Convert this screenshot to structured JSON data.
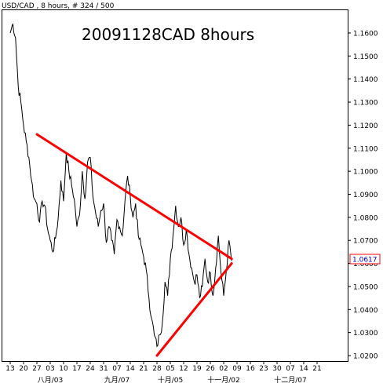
{
  "header": {
    "symbol_info": "USD/CAD , 8 hours, # 324 / 500"
  },
  "chart_data": {
    "type": "line",
    "title": "20091128CAD 8hours",
    "ylim": [
      1.0195,
      1.166
    ],
    "y_ticks": [
      "1.1600",
      "1.1500",
      "1.1400",
      "1.1300",
      "1.1200",
      "1.1100",
      "1.1000",
      "1.0900",
      "1.0800",
      "1.0700",
      "1.0600",
      "1.0500",
      "1.0400",
      "1.0300",
      "1.0200"
    ],
    "current_price_label": "1.0617",
    "x_ticks": [
      "13",
      "20",
      "27",
      "03",
      "10",
      "17",
      "24",
      "31",
      "07",
      "14",
      "21",
      "28",
      "05",
      "12",
      "19",
      "26",
      "02",
      "09",
      "16",
      "23",
      "30",
      "07",
      "14",
      "21"
    ],
    "x_month_labels": [
      "八月/03",
      "九月/07",
      "十月/05",
      "十一月/02",
      "十二月/07"
    ],
    "x_units": "trading days (8-hour bars, 3 per day)",
    "x": [
      0,
      1,
      2,
      3,
      4,
      5,
      6,
      7,
      8,
      9,
      10,
      11,
      12,
      13,
      14,
      15,
      16,
      17,
      18,
      19,
      20,
      21,
      22,
      23,
      24,
      25,
      26,
      27,
      28,
      29,
      30,
      31,
      32,
      33,
      34,
      35,
      36,
      37,
      38,
      39,
      40,
      41,
      42,
      43,
      44,
      45,
      46,
      47,
      48,
      49,
      50,
      51,
      52,
      53,
      54,
      55,
      56,
      57,
      58,
      59,
      60,
      61,
      62,
      63,
      64,
      65,
      66,
      67,
      68,
      69,
      70,
      71,
      72,
      73,
      74,
      75,
      76,
      77,
      78,
      79,
      80,
      81,
      82,
      83
    ],
    "series": [
      {
        "color": "#000000",
        "values": [
          1.16,
          1.164,
          1.158,
          1.137,
          1.13,
          1.12,
          1.113,
          1.106,
          1.096,
          1.088,
          1.086,
          1.078,
          1.087,
          1.085,
          1.075,
          1.07,
          1.065,
          1.071,
          1.08,
          1.096,
          1.087,
          1.108,
          1.1,
          1.094,
          1.088,
          1.076,
          1.081,
          1.1,
          1.088,
          1.104,
          1.106,
          1.089,
          1.082,
          1.076,
          1.083,
          1.086,
          1.069,
          1.076,
          1.07,
          1.064,
          1.079,
          1.076,
          1.072,
          1.087,
          1.098,
          1.089,
          1.08,
          1.086,
          1.072,
          1.068,
          1.063,
          1.057,
          1.045,
          1.036,
          1.029,
          1.024,
          1.029,
          1.034,
          1.052,
          1.046,
          1.062,
          1.072,
          1.085,
          1.076,
          1.08,
          1.068,
          1.075,
          1.064,
          1.058,
          1.052,
          1.055,
          1.045,
          1.05,
          1.062,
          1.052,
          1.056,
          1.046,
          1.058,
          1.072,
          1.056,
          1.046,
          1.057,
          1.07,
          1.061
        ]
      }
    ],
    "trendlines": [
      {
        "color": "#ff0000",
        "start": {
          "x": 10,
          "y": 1.116
        },
        "end": {
          "x": 83,
          "y": 1.062
        }
      },
      {
        "color": "#ff0000",
        "start": {
          "x": 55,
          "y": 1.02
        },
        "end": {
          "x": 83,
          "y": 1.06
        }
      }
    ],
    "grid": false,
    "colors": {
      "background": "#ffffff",
      "price": "#000000",
      "trendline": "#ff0000",
      "price_label": "#0000cc"
    }
  }
}
